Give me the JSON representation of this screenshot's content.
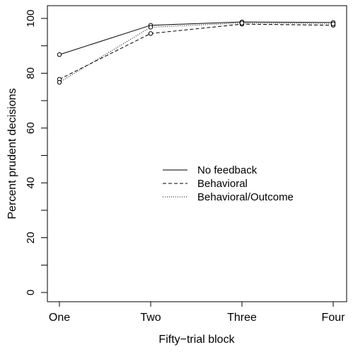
{
  "chart_data": {
    "type": "line",
    "xlabel": "Fifty−trial block",
    "ylabel": "Percent prudent decisions",
    "categories": [
      "One",
      "Two",
      "Three",
      "Four"
    ],
    "ylim": [
      -4,
      101
    ],
    "yticks": [
      0,
      20,
      40,
      60,
      80,
      100
    ],
    "grid": false,
    "legend_position": "center-right",
    "series": [
      {
        "name": "No feedback",
        "style": "solid",
        "values": [
          86.8,
          97.5,
          98.7,
          98.5
        ]
      },
      {
        "name": "Behavioral",
        "style": "dashed",
        "values": [
          77.8,
          94.5,
          97.9,
          97.5
        ]
      },
      {
        "name": "Behavioral/Outcome",
        "style": "dotted",
        "values": [
          76.7,
          96.8,
          98.3,
          98.0
        ]
      }
    ]
  }
}
